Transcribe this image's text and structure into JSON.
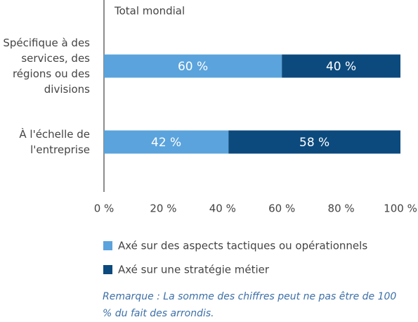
{
  "chart_data": {
    "type": "stacked-bar-horizontal",
    "subtitle": "Total mondial",
    "categories": [
      "Spécifique à des services, des régions ou des divisions",
      "À l'échelle de l'entreprise"
    ],
    "series": [
      {
        "name": "Axé sur des aspects tactiques ou opérationnels",
        "color": "#5ba3dc",
        "values": [
          60,
          42
        ],
        "value_labels": [
          "60 %",
          "42 %"
        ]
      },
      {
        "name": "Axé sur une stratégie métier",
        "color": "#0c4a7d",
        "values": [
          40,
          58
        ],
        "value_labels": [
          "40 %",
          "58 %"
        ]
      }
    ],
    "xlim": [
      0,
      100
    ],
    "xticks": [
      {
        "value": 0,
        "label": "0 %"
      },
      {
        "value": 20,
        "label": "20 %"
      },
      {
        "value": 40,
        "label": "40 %"
      },
      {
        "value": 60,
        "label": "60 %"
      },
      {
        "value": 80,
        "label": "80 %"
      },
      {
        "value": 100,
        "label": "100 %"
      }
    ],
    "note": "Remarque : La somme des chiffres peut ne pas être de 100 % du fait des arrondis."
  }
}
